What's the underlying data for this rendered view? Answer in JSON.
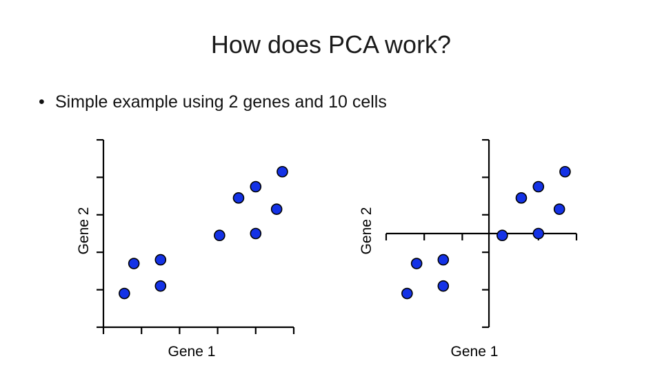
{
  "slide": {
    "title": "How does PCA work?",
    "bullet_marker": "•",
    "bullet": "Simple example using 2 genes and 10 cells"
  },
  "colors": {
    "point_fill": "#1432e6",
    "point_stroke": "#000000",
    "axis": "#000000"
  },
  "chart_data": [
    {
      "type": "scatter",
      "xlabel": "Gene 1",
      "ylabel": "Gene 2",
      "xlim": [
        0,
        10
      ],
      "ylim": [
        0,
        10
      ],
      "x_ticks": [
        0,
        2,
        4,
        6,
        8,
        10
      ],
      "y_ticks": [
        0,
        2,
        4,
        6,
        8,
        10
      ],
      "centered": false,
      "points": [
        {
          "x": 1.1,
          "y": 1.8
        },
        {
          "x": 1.6,
          "y": 3.4
        },
        {
          "x": 3.0,
          "y": 3.6
        },
        {
          "x": 3.0,
          "y": 2.2
        },
        {
          "x": 6.1,
          "y": 4.9
        },
        {
          "x": 7.1,
          "y": 6.9
        },
        {
          "x": 8.0,
          "y": 7.5
        },
        {
          "x": 8.0,
          "y": 5.0
        },
        {
          "x": 9.1,
          "y": 6.3
        },
        {
          "x": 9.4,
          "y": 8.3
        }
      ]
    },
    {
      "type": "scatter",
      "xlabel": "Gene 1",
      "ylabel": "Gene 2",
      "xlim": [
        -5.4,
        4.6
      ],
      "ylim": [
        -5,
        5
      ],
      "x_ticks": [
        -5.4,
        -3.4,
        -1.4,
        0.6,
        2.6,
        4.6
      ],
      "y_ticks": [
        -5,
        -3,
        -1,
        1,
        3,
        5
      ],
      "centered": true,
      "points": [
        {
          "x": -4.3,
          "y": -3.2
        },
        {
          "x": -3.8,
          "y": -1.6
        },
        {
          "x": -2.4,
          "y": -1.4
        },
        {
          "x": -2.4,
          "y": -2.8
        },
        {
          "x": 0.7,
          "y": -0.1
        },
        {
          "x": 1.7,
          "y": 1.9
        },
        {
          "x": 2.6,
          "y": 2.5
        },
        {
          "x": 2.6,
          "y": 0.0
        },
        {
          "x": 3.7,
          "y": 1.3
        },
        {
          "x": 4.0,
          "y": 3.3
        }
      ]
    }
  ]
}
